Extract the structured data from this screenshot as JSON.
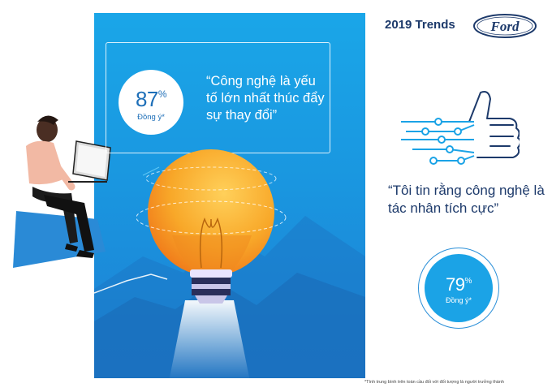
{
  "header": {
    "title": "2019 Trends",
    "logo_text": "Ford"
  },
  "stat1": {
    "value": "87",
    "unit": "%",
    "label": "Đồng ý*"
  },
  "quote1": {
    "text": "“Công nghệ là yếu tố lớn nhất thúc đẩy sự thay đổi”"
  },
  "quote2": {
    "text": "“Tôi tin rằng công nghệ là tác nhân tích cực”"
  },
  "stat2": {
    "value": "79",
    "unit": "%",
    "label": "Đồng ý*"
  },
  "footnote": {
    "text": "*Tính trung bình trên toàn cầu đối với đối tượng là người trưởng thành"
  },
  "icons": {
    "thumb": "thumbs-up-circuit-icon",
    "bulb": "light-bulb-rocket-icon",
    "person": "person-with-laptop-icon"
  },
  "colors": {
    "panel_blue": "#1a97e0",
    "navy_text": "#1d3a6b",
    "bulb_orange": "#f6a623",
    "accent_blue": "#1ba3e6"
  }
}
